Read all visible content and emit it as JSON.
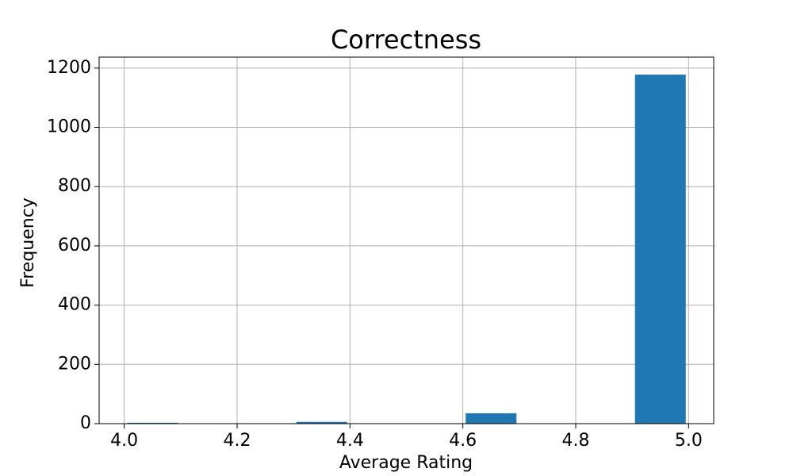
{
  "chart_data": {
    "type": "histogram",
    "title": "Correctness",
    "x_label": "Average Rating",
    "y_label": "Frequency",
    "bins": [
      4.0,
      4.1,
      4.2,
      4.3,
      4.4,
      4.5,
      4.6,
      4.7,
      4.8,
      4.9,
      5.0
    ],
    "values": [
      3,
      0,
      0,
      6,
      0,
      0,
      35,
      0,
      0,
      1178
    ],
    "color": "#1f77b4",
    "xlim": [
      3.9555,
      5.0445
    ],
    "xticks": [
      {
        "value": 4.0,
        "label": "4.0"
      },
      4.2,
      4.4,
      4.6,
      4.8,
      {
        "value": 5.0,
        "label": "5.0"
      }
    ],
    "ylim": [
      0,
      1237
    ],
    "yticks": [
      0,
      200,
      400,
      600,
      800,
      1000,
      1200
    ],
    "grid": true
  }
}
